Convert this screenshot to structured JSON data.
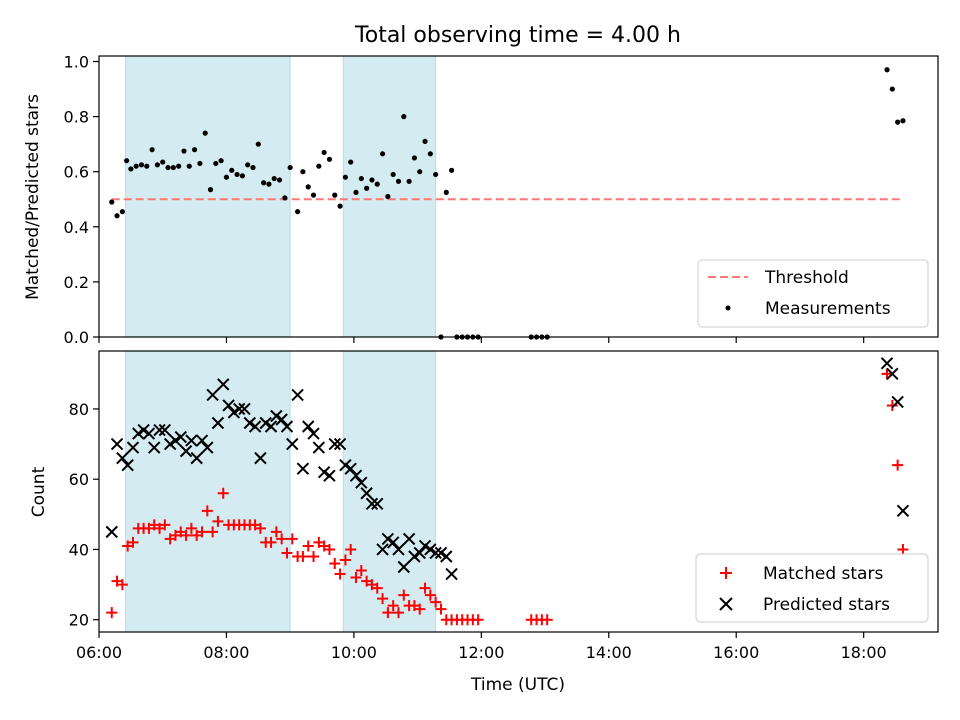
{
  "title": "Total observing time = 4.00 h",
  "chart_data": [
    {
      "type": "scatter",
      "ylabel": "Matched/Predicted stars",
      "ylim": [
        0,
        1.02
      ],
      "xlim": [
        "06:00",
        "19:10"
      ],
      "xticks": [
        "06:00",
        "08:00",
        "10:00",
        "12:00",
        "14:00",
        "16:00",
        "18:00"
      ],
      "yticks": [
        "0.0",
        "0.2",
        "0.4",
        "0.6",
        "0.8",
        "1.0"
      ],
      "shaded_intervals": [
        [
          "06:25",
          "09:00"
        ],
        [
          "09:50",
          "11:17"
        ]
      ],
      "legend": {
        "location": "lower-right",
        "entries": [
          "Threshold",
          "Measurements"
        ]
      },
      "threshold": {
        "name": "Threshold",
        "value": 0.5,
        "x_range": [
          "06:12",
          "18:35"
        ],
        "color": "#ff7777",
        "style": "dashed"
      },
      "series": [
        {
          "name": "Measurements",
          "color": "#000000",
          "points": [
            [
              "06:12",
              0.49
            ],
            [
              "06:17",
              0.44
            ],
            [
              "06:22",
              0.455
            ],
            [
              "06:26",
              0.64
            ],
            [
              "06:30",
              0.61
            ],
            [
              "06:35",
              0.62
            ],
            [
              "06:40",
              0.625
            ],
            [
              "06:45",
              0.62
            ],
            [
              "06:50",
              0.68
            ],
            [
              "06:55",
              0.625
            ],
            [
              "07:00",
              0.635
            ],
            [
              "07:05",
              0.615
            ],
            [
              "07:10",
              0.615
            ],
            [
              "07:15",
              0.62
            ],
            [
              "07:20",
              0.675
            ],
            [
              "07:25",
              0.62
            ],
            [
              "07:30",
              0.68
            ],
            [
              "07:35",
              0.63
            ],
            [
              "07:40",
              0.74
            ],
            [
              "07:45",
              0.535
            ],
            [
              "07:50",
              0.63
            ],
            [
              "07:55",
              0.64
            ],
            [
              "08:00",
              0.58
            ],
            [
              "08:05",
              0.605
            ],
            [
              "08:10",
              0.59
            ],
            [
              "08:15",
              0.585
            ],
            [
              "08:20",
              0.625
            ],
            [
              "08:25",
              0.615
            ],
            [
              "08:30",
              0.7
            ],
            [
              "08:35",
              0.56
            ],
            [
              "08:40",
              0.555
            ],
            [
              "08:45",
              0.575
            ],
            [
              "08:50",
              0.57
            ],
            [
              "08:55",
              0.505
            ],
            [
              "09:00",
              0.615
            ],
            [
              "09:07",
              0.455
            ],
            [
              "09:12",
              0.6
            ],
            [
              "09:17",
              0.545
            ],
            [
              "09:22",
              0.515
            ],
            [
              "09:27",
              0.62
            ],
            [
              "09:32",
              0.67
            ],
            [
              "09:37",
              0.645
            ],
            [
              "09:42",
              0.515
            ],
            [
              "09:47",
              0.475
            ],
            [
              "09:52",
              0.58
            ],
            [
              "09:57",
              0.635
            ],
            [
              "10:02",
              0.525
            ],
            [
              "10:07",
              0.575
            ],
            [
              "10:12",
              0.54
            ],
            [
              "10:17",
              0.57
            ],
            [
              "10:22",
              0.555
            ],
            [
              "10:27",
              0.665
            ],
            [
              "10:32",
              0.51
            ],
            [
              "10:37",
              0.59
            ],
            [
              "10:42",
              0.565
            ],
            [
              "10:47",
              0.8
            ],
            [
              "10:52",
              0.565
            ],
            [
              "10:57",
              0.65
            ],
            [
              "11:02",
              0.6
            ],
            [
              "11:07",
              0.71
            ],
            [
              "11:12",
              0.665
            ],
            [
              "11:17",
              0.59
            ],
            [
              "11:22",
              0.0
            ],
            [
              "11:27",
              0.525
            ],
            [
              "11:32",
              0.605
            ],
            [
              "11:37",
              0.0
            ],
            [
              "11:42",
              0.0
            ],
            [
              "11:47",
              0.0
            ],
            [
              "11:52",
              0.0
            ],
            [
              "11:57",
              0.0
            ],
            [
              "12:47",
              0.0
            ],
            [
              "12:52",
              0.0
            ],
            [
              "12:57",
              0.0
            ],
            [
              "13:02",
              0.0
            ],
            [
              "18:22",
              0.97
            ],
            [
              "18:27",
              0.9
            ],
            [
              "18:32",
              0.78
            ],
            [
              "18:37",
              0.785
            ]
          ]
        }
      ]
    },
    {
      "type": "scatter",
      "xlabel": "Time (UTC)",
      "ylabel": "Count",
      "ylim": [
        16.5,
        96.5
      ],
      "xlim": [
        "06:00",
        "19:10"
      ],
      "xticks": [
        "06:00",
        "08:00",
        "10:00",
        "12:00",
        "14:00",
        "16:00",
        "18:00"
      ],
      "yticks": [
        "20",
        "40",
        "60",
        "80"
      ],
      "shaded_intervals": [
        [
          "06:25",
          "09:00"
        ],
        [
          "09:50",
          "11:17"
        ]
      ],
      "legend": {
        "location": "lower-right",
        "entries": [
          "Matched stars",
          "Predicted stars"
        ]
      },
      "series": [
        {
          "name": "Matched stars",
          "marker": "plus",
          "color": "#ff0000",
          "points": [
            [
              "06:12",
              22
            ],
            [
              "06:17",
              31
            ],
            [
              "06:22",
              30
            ],
            [
              "06:27",
              41
            ],
            [
              "06:32",
              42
            ],
            [
              "06:37",
              46
            ],
            [
              "06:42",
              46
            ],
            [
              "06:47",
              46
            ],
            [
              "06:52",
              47
            ],
            [
              "06:57",
              46
            ],
            [
              "07:02",
              47
            ],
            [
              "07:07",
              43
            ],
            [
              "07:12",
              44
            ],
            [
              "07:17",
              45
            ],
            [
              "07:22",
              44
            ],
            [
              "07:27",
              46
            ],
            [
              "07:32",
              44
            ],
            [
              "07:37",
              45
            ],
            [
              "07:42",
              51
            ],
            [
              "07:47",
              45
            ],
            [
              "07:52",
              48
            ],
            [
              "07:57",
              56
            ],
            [
              "08:02",
              47
            ],
            [
              "08:07",
              47
            ],
            [
              "08:12",
              47
            ],
            [
              "08:17",
              47
            ],
            [
              "08:22",
              47
            ],
            [
              "08:27",
              47
            ],
            [
              "08:32",
              46
            ],
            [
              "08:37",
              42
            ],
            [
              "08:42",
              42
            ],
            [
              "08:47",
              45
            ],
            [
              "08:52",
              43
            ],
            [
              "08:57",
              39
            ],
            [
              "09:02",
              43
            ],
            [
              "09:07",
              38
            ],
            [
              "09:12",
              38
            ],
            [
              "09:17",
              41
            ],
            [
              "09:22",
              38
            ],
            [
              "09:27",
              42
            ],
            [
              "09:32",
              41
            ],
            [
              "09:37",
              40
            ],
            [
              "09:42",
              36
            ],
            [
              "09:47",
              33
            ],
            [
              "09:52",
              37
            ],
            [
              "09:57",
              40
            ],
            [
              "10:02",
              32
            ],
            [
              "10:07",
              34
            ],
            [
              "10:12",
              31
            ],
            [
              "10:17",
              30
            ],
            [
              "10:22",
              29
            ],
            [
              "10:27",
              26
            ],
            [
              "10:32",
              22
            ],
            [
              "10:37",
              24
            ],
            [
              "10:42",
              22
            ],
            [
              "10:47",
              27
            ],
            [
              "10:52",
              24
            ],
            [
              "10:57",
              24
            ],
            [
              "11:02",
              23
            ],
            [
              "11:07",
              29
            ],
            [
              "11:12",
              27
            ],
            [
              "11:17",
              25
            ],
            [
              "11:22",
              23
            ],
            [
              "11:27",
              20
            ],
            [
              "11:32",
              20
            ],
            [
              "11:37",
              20
            ],
            [
              "11:42",
              20
            ],
            [
              "11:47",
              20
            ],
            [
              "11:52",
              20
            ],
            [
              "11:57",
              20
            ],
            [
              "12:47",
              20
            ],
            [
              "12:52",
              20
            ],
            [
              "12:57",
              20
            ],
            [
              "13:02",
              20
            ],
            [
              "18:22",
              90
            ],
            [
              "18:27",
              81
            ],
            [
              "18:32",
              64
            ],
            [
              "18:37",
              40
            ]
          ]
        },
        {
          "name": "Predicted stars",
          "marker": "x",
          "color": "#000000",
          "points": [
            [
              "06:12",
              45
            ],
            [
              "06:17",
              70
            ],
            [
              "06:22",
              66
            ],
            [
              "06:27",
              64
            ],
            [
              "06:32",
              69
            ],
            [
              "06:37",
              73
            ],
            [
              "06:42",
              74
            ],
            [
              "06:47",
              73
            ],
            [
              "06:52",
              69
            ],
            [
              "06:57",
              74
            ],
            [
              "07:02",
              74
            ],
            [
              "07:07",
              70
            ],
            [
              "07:12",
              71
            ],
            [
              "07:17",
              72
            ],
            [
              "07:22",
              68
            ],
            [
              "07:27",
              71
            ],
            [
              "07:32",
              66
            ],
            [
              "07:37",
              71
            ],
            [
              "07:42",
              69
            ],
            [
              "07:47",
              84
            ],
            [
              "07:52",
              76
            ],
            [
              "07:57",
              87
            ],
            [
              "08:02",
              81
            ],
            [
              "08:07",
              79
            ],
            [
              "08:12",
              80
            ],
            [
              "08:17",
              80
            ],
            [
              "08:22",
              76
            ],
            [
              "08:27",
              75
            ],
            [
              "08:32",
              66
            ],
            [
              "08:37",
              76
            ],
            [
              "08:42",
              75
            ],
            [
              "08:47",
              78
            ],
            [
              "08:52",
              77
            ],
            [
              "08:57",
              75
            ],
            [
              "09:02",
              70
            ],
            [
              "09:07",
              84
            ],
            [
              "09:12",
              63
            ],
            [
              "09:17",
              75
            ],
            [
              "09:22",
              73
            ],
            [
              "09:27",
              69
            ],
            [
              "09:32",
              62
            ],
            [
              "09:37",
              61
            ],
            [
              "09:42",
              70
            ],
            [
              "09:47",
              70
            ],
            [
              "09:52",
              64
            ],
            [
              "09:57",
              63
            ],
            [
              "10:02",
              61
            ],
            [
              "10:07",
              59
            ],
            [
              "10:12",
              56
            ],
            [
              "10:17",
              53
            ],
            [
              "10:22",
              53
            ],
            [
              "10:27",
              40
            ],
            [
              "10:32",
              43
            ],
            [
              "10:37",
              42
            ],
            [
              "10:42",
              40
            ],
            [
              "10:47",
              35
            ],
            [
              "10:52",
              43
            ],
            [
              "10:57",
              38
            ],
            [
              "11:02",
              39
            ],
            [
              "11:07",
              41
            ],
            [
              "11:12",
              40
            ],
            [
              "11:17",
              39
            ],
            [
              "11:22",
              39
            ],
            [
              "11:27",
              38
            ],
            [
              "11:32",
              33
            ],
            [
              "18:22",
              93
            ],
            [
              "18:27",
              90
            ],
            [
              "18:32",
              82
            ],
            [
              "18:37",
              51
            ]
          ]
        }
      ]
    }
  ]
}
